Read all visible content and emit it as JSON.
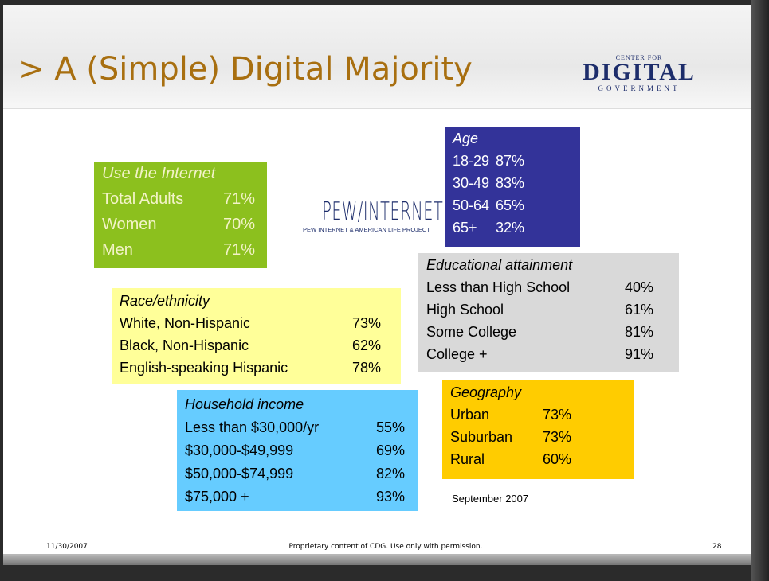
{
  "title": "> A (Simple) Digital Majority",
  "logo": {
    "top": "CENTER FOR",
    "main": "DIGITAL",
    "bottom": "GOVERNMENT"
  },
  "pew_logo": {
    "main": "PEW/INTERNET",
    "sub": "PEW INTERNET & AMERICAN LIFE PROJECT"
  },
  "boxes": [
    {
      "heading": "Use the Internet",
      "rows": [
        {
          "label": "Total Adults",
          "value": "71%"
        },
        {
          "label": "Women",
          "value": "70%"
        },
        {
          "label": "Men",
          "value": "71%"
        }
      ]
    },
    {
      "heading": "Age",
      "rows": [
        {
          "label": "18-29",
          "value": "87%"
        },
        {
          "label": "30-49",
          "value": "83%"
        },
        {
          "label": "50-64",
          "value": "65%"
        },
        {
          "label": "65+",
          "value": "32%"
        }
      ]
    },
    {
      "heading": "Educational attainment",
      "rows": [
        {
          "label": "Less than High School",
          "value": "40%"
        },
        {
          "label": "High School",
          "value": "61%"
        },
        {
          "label": "Some College",
          "value": "81%"
        },
        {
          "label": "College +",
          "value": "91%"
        }
      ]
    },
    {
      "heading": "Race/ethnicity",
      "rows": [
        {
          "label": "White, Non-Hispanic",
          "value": "73%"
        },
        {
          "label": "Black, Non-Hispanic",
          "value": "62%"
        },
        {
          "label": "English-speaking Hispanic",
          "value": "78%"
        }
      ]
    },
    {
      "heading": "Household income",
      "rows": [
        {
          "label": "Less than $30,000/yr",
          "value": "55%"
        },
        {
          "label": "$30,000-$49,999",
          "value": "69%"
        },
        {
          "label": "$50,000-$74,999",
          "value": "82%"
        },
        {
          "label": "$75,000 +",
          "value": "93%"
        }
      ]
    },
    {
      "heading": "Geography",
      "rows": [
        {
          "label": "Urban",
          "value": "73%"
        },
        {
          "label": "Suburban",
          "value": "73%"
        },
        {
          "label": "Rural",
          "value": "60%"
        }
      ]
    }
  ],
  "date_note": "September 2007",
  "footer": {
    "date": "11/30/2007",
    "notice": "Proprietary content of CDG. Use only with permission.",
    "page": "28"
  }
}
